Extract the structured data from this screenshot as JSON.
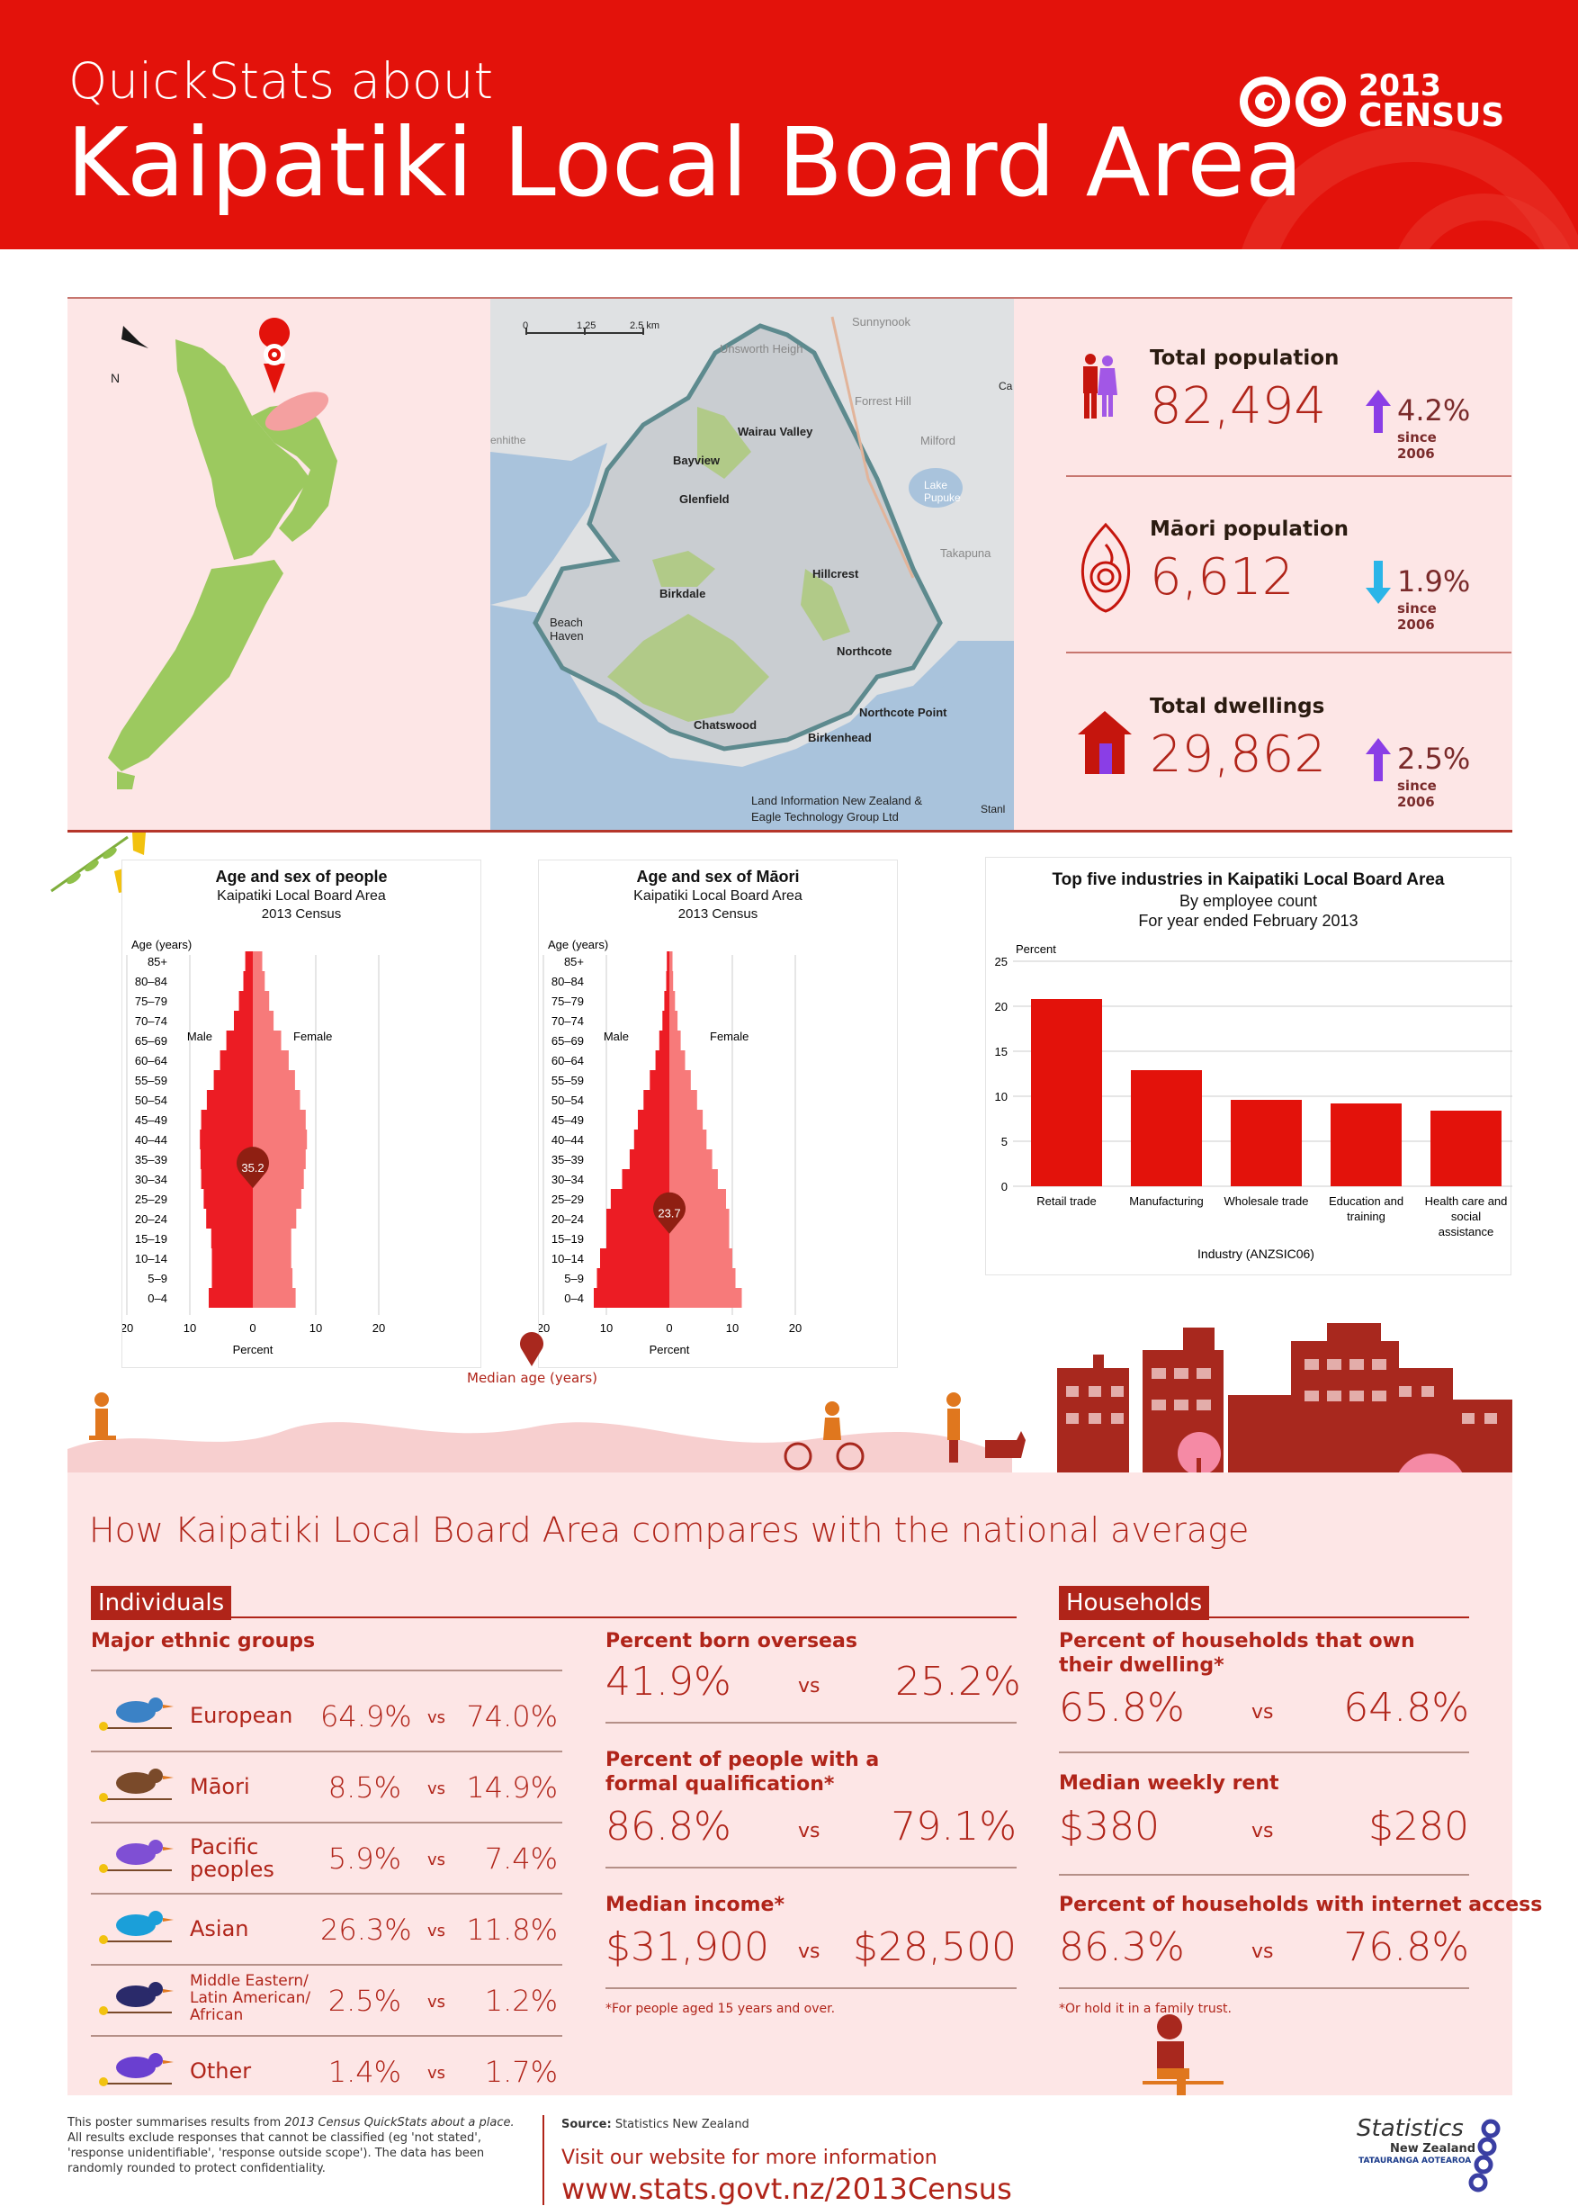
{
  "header": {
    "subtitle": "QuickStats about",
    "title": "Kaipatiki Local Board Area",
    "logo_year": "2013",
    "logo_name": "CENSUS"
  },
  "map": {
    "north": "N",
    "scale": [
      "0",
      "1.25",
      "2.5 km"
    ],
    "places": [
      "Sunnynook",
      "Unsworth Heigh",
      "Forrest Hill",
      "Wairau Valley",
      "Milford",
      "Bayview",
      "Glenfield",
      "Lake Pupuke",
      "Takapuna",
      "Hillcrest",
      "Birkdale",
      "Beach Haven",
      "Northcote",
      "Northcote Point",
      "Chatswood",
      "Birkenhead",
      "enhithe",
      "Ca",
      "Stanl"
    ],
    "credit": [
      "Land Information New Zealand &",
      "Eagle Technology Group Ltd"
    ]
  },
  "stats": [
    {
      "label": "Total population",
      "value": "82,494",
      "change": "4.2%",
      "since": "since 2006",
      "direction": "up",
      "icon": "people-icon"
    },
    {
      "label": "Māori population",
      "value": "6,612",
      "change": "1.9%",
      "since": "since 2006",
      "direction": "down",
      "icon": "maori-koru-icon"
    },
    {
      "label": "Total dwellings",
      "value": "29,862",
      "change": "2.5%",
      "since": "since 2006",
      "direction": "up",
      "icon": "house-icon"
    }
  ],
  "colors": {
    "brand_red": "#e3120b",
    "dark_red": "#b02419",
    "male": "#ec1c24",
    "female": "#f77a7a",
    "up_arrow": "#8a3ee6",
    "down_arrow": "#2bb5e8",
    "panel": "#fde6e6"
  },
  "pyramid_labels": {
    "age_axis": "Age (years)",
    "male": "Male",
    "female": "Female",
    "x_label": "Percent",
    "median_label": "Median age (years)"
  },
  "chart_data": [
    {
      "type": "bar",
      "title": "Age and sex of people",
      "subtitle": [
        "Kaipatiki Local Board Area",
        "2013 Census"
      ],
      "xlabel": "Percent",
      "ylabel": "Age (years)",
      "xlim": [
        -20,
        20
      ],
      "xticks": [
        "20",
        "10",
        "0",
        "10",
        "20"
      ],
      "categories": [
        "0–4",
        "5–9",
        "10–14",
        "15–19",
        "20–24",
        "25–29",
        "30–34",
        "35–39",
        "40–44",
        "45–49",
        "50–54",
        "55–59",
        "60–64",
        "65–69",
        "70–74",
        "75–79",
        "80–84",
        "85+"
      ],
      "series": [
        {
          "name": "Male",
          "values": [
            7.0,
            6.5,
            6.5,
            6.6,
            7.4,
            7.8,
            8.2,
            8.3,
            8.4,
            8.2,
            7.3,
            6.2,
            5.2,
            4.2,
            3.0,
            2.2,
            1.5,
            1.2
          ]
        },
        {
          "name": "Female",
          "values": [
            6.8,
            6.3,
            6.1,
            6.1,
            6.9,
            7.7,
            8.1,
            8.4,
            8.6,
            8.4,
            7.5,
            6.7,
            5.7,
            4.5,
            3.3,
            2.6,
            1.9,
            1.5
          ]
        }
      ],
      "median": "35.2"
    },
    {
      "type": "bar",
      "title": "Age and sex of Māori",
      "subtitle": [
        "Kaipatiki Local Board Area",
        "2013 Census"
      ],
      "xlabel": "Percent",
      "ylabel": "Age (years)",
      "xlim": [
        -20,
        20
      ],
      "xticks": [
        "20",
        "10",
        "0",
        "10",
        "20"
      ],
      "categories": [
        "0–4",
        "5–9",
        "10–14",
        "15–19",
        "20–24",
        "25–29",
        "30–34",
        "35–39",
        "40–44",
        "45–49",
        "50–54",
        "55–59",
        "60–64",
        "65–69",
        "70–74",
        "75–79",
        "80–84",
        "85+"
      ],
      "series": [
        {
          "name": "Male",
          "values": [
            12.0,
            11.5,
            11.0,
            10.0,
            10.0,
            9.3,
            7.5,
            6.3,
            5.6,
            5.0,
            4.1,
            3.1,
            2.2,
            1.6,
            1.1,
            0.8,
            0.5,
            0.4
          ]
        },
        {
          "name": "Female",
          "values": [
            11.5,
            10.5,
            10.0,
            9.5,
            9.5,
            9.0,
            7.7,
            6.8,
            5.9,
            5.3,
            4.4,
            3.4,
            2.5,
            1.8,
            1.3,
            0.9,
            0.6,
            0.5
          ]
        }
      ],
      "median": "23.7"
    },
    {
      "type": "bar",
      "title": "Top five industries in Kaipatiki Local Board Area",
      "subtitle": [
        "By employee count",
        "For year ended February 2013"
      ],
      "xlabel": "Industry (ANZSIC06)",
      "ylabel": "Percent",
      "ylim": [
        0,
        25
      ],
      "yticks": [
        "25",
        "20",
        "15",
        "10",
        "5",
        "0"
      ],
      "categories": [
        "Retail trade",
        "Manufacturing",
        "Wholesale trade",
        "Education and training",
        "Health care and social assistance"
      ],
      "values": [
        20.8,
        12.9,
        9.6,
        9.2,
        8.4
      ]
    }
  ],
  "compare": {
    "title": "How Kaipatiki Local Board Area compares with the national average",
    "individuals": "Individuals",
    "households": "Households",
    "ethnic_title": "Major ethnic groups",
    "vs": "vs",
    "ethnic": [
      {
        "name": "European",
        "local": "64.9%",
        "national": "74.0%",
        "icon": "bird-european-icon"
      },
      {
        "name": "Māori",
        "local": "8.5%",
        "national": "14.9%",
        "icon": "bird-maori-icon"
      },
      {
        "name": "Pacific peoples",
        "local": "5.9%",
        "national": "7.4%",
        "icon": "bird-pacific-icon"
      },
      {
        "name": "Asian",
        "local": "26.3%",
        "national": "11.8%",
        "icon": "bird-asian-icon"
      },
      {
        "name": "Middle Eastern/ Latin American/ African",
        "local": "2.5%",
        "national": "1.2%",
        "icon": "bird-toucan-icon"
      },
      {
        "name": "Other",
        "local": "1.4%",
        "national": "1.7%",
        "icon": "flowers-icon"
      }
    ],
    "individual_stats": [
      {
        "label": "Percent born overseas",
        "local": "41.9%",
        "national": "25.2%"
      },
      {
        "label": "Percent of people with a formal qualification*",
        "local": "86.8%",
        "national": "79.1%"
      },
      {
        "label": "Median income*",
        "local": "$31,900",
        "national": "$28,500"
      }
    ],
    "individual_note": "*For people aged 15 years and over.",
    "household_stats": [
      {
        "label": "Percent of households that own their dwelling*",
        "local": "65.8%",
        "national": "64.8%"
      },
      {
        "label": "Median weekly rent",
        "local": "$380",
        "national": "$280"
      },
      {
        "label": "Percent of households with internet access",
        "local": "86.3%",
        "national": "76.8%"
      }
    ],
    "household_note": "*Or hold it in a family trust."
  },
  "footer": {
    "disclaimer_1": "This poster summarises results from",
    "disclaimer_em": "2013 Census QuickStats about a place.",
    "disclaimer_2": "All results exclude responses that cannot be classified (eg 'not stated', 'response unidentifiable', 'response outside scope'). The data has been randomly rounded to protect confidentiality.",
    "source_label": "Source:",
    "source": "Statistics New Zealand",
    "visit": "Visit our website for more information",
    "url": "www.stats.govt.nz/2013Census",
    "org_name": "Statistics",
    "org_sub": "New Zealand",
    "org_maori": "TATAURANGA AOTEAROA"
  }
}
